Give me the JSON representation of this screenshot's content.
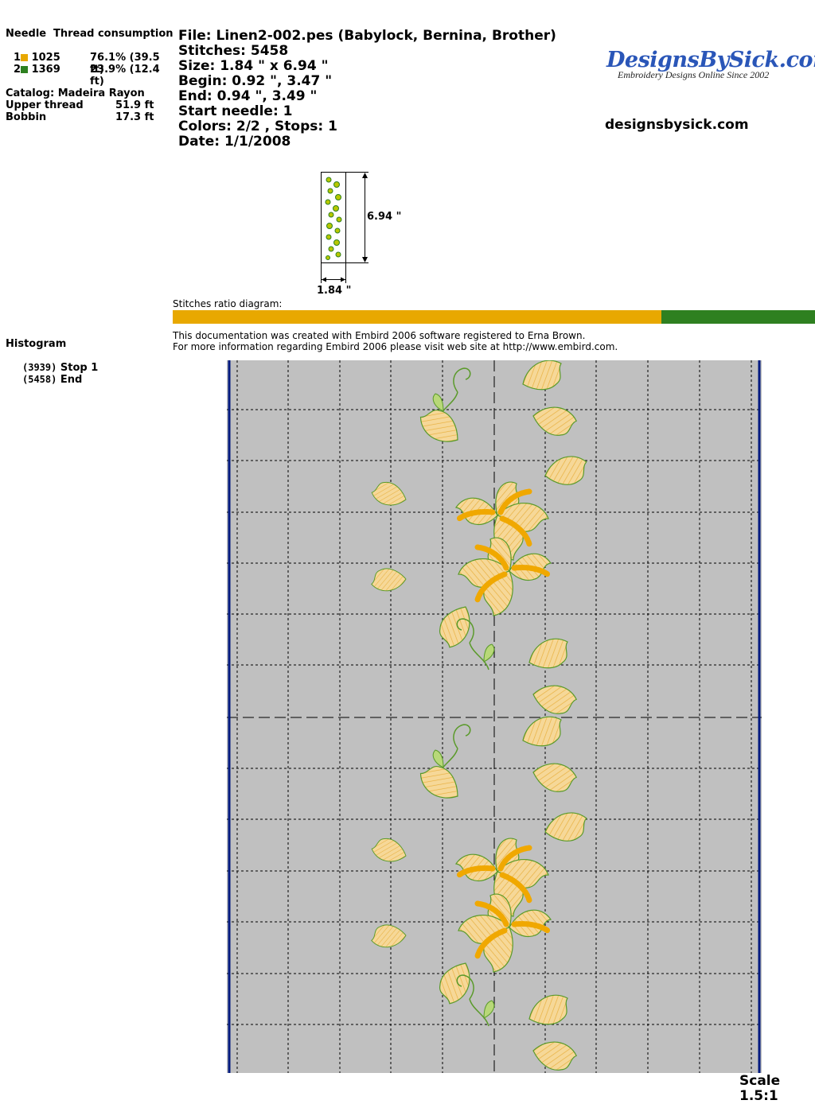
{
  "left_panel": {
    "needle_header": "Needle",
    "thread_header": "Thread consumption",
    "needles": [
      {
        "num": "1",
        "code": "1025",
        "consumption": "76.1% (39.5 ft)",
        "color": "#e8a800"
      },
      {
        "num": "2",
        "code": "1369",
        "consumption": "23.9% (12.4 ft)",
        "color": "#2e8020"
      }
    ],
    "catalog": "Catalog: Madeira Rayon",
    "upper_label": "Upper thread",
    "upper_value": "51.9 ft",
    "bobbin_label": "Bobbin",
    "bobbin_value": "17.3 ft",
    "histogram_label": "Histogram",
    "histogram": [
      {
        "count": "(3939)",
        "label": "Stop 1"
      },
      {
        "count": "(5458)",
        "label": "End"
      }
    ]
  },
  "info": {
    "file": "File: Linen2-002.pes  (Babylock, Bernina, Brother)",
    "stitches": "Stitches: 5458",
    "size": "Size: 1.84 \" x 6.94 \"",
    "begin": "Begin: 0.92 \", 3.47 \"",
    "end": "End: 0.94 \", 3.49 \"",
    "start_needle": "Start needle: 1",
    "colors": "Colors: 2/2 , Stops: 1",
    "date": "Date: 1/1/2008"
  },
  "logo": {
    "title": "DesignsBySick.com",
    "subtitle": "Embroidery Designs Online Since 2002",
    "url": "designsbysick.com"
  },
  "thumbnail": {
    "height_label": "6.94 \"",
    "width_label": "1.84 \""
  },
  "ratio": {
    "label": "Stitches ratio diagram:",
    "fractions": [
      0.761,
      0.239
    ],
    "colors": [
      "#e8a800",
      "#2e8020"
    ]
  },
  "notes": {
    "line1": "This documentation was created with Embird 2006 software registered to Erna Brown.",
    "line2": "For more information regarding Embird 2006 please visit web site at http://www.embird.com."
  },
  "scale": "Scale 1.5:1"
}
